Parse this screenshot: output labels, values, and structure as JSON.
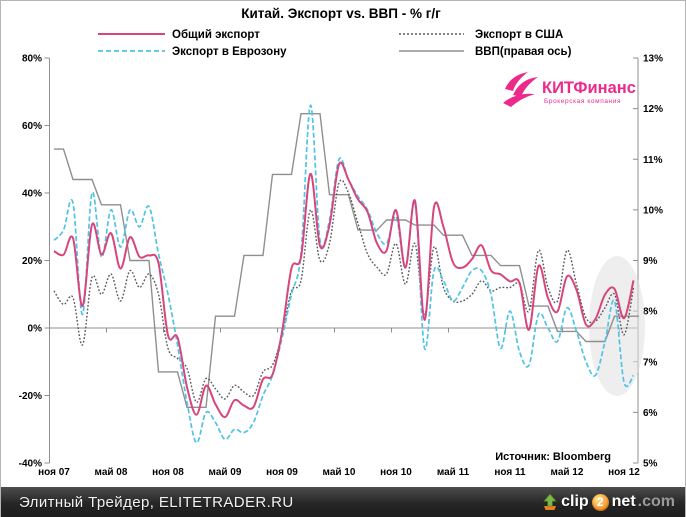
{
  "chart_data": {
    "type": "line",
    "title": "Китай. Экспорт vs. ВВП - % г/г",
    "x_unit": "month",
    "x_first_label_month": "ноя 07",
    "points": 62,
    "x_tick_labels": [
      "ноя 07",
      "май 08",
      "ноя 08",
      "май 09",
      "ноя 09",
      "май 10",
      "ноя 10",
      "май 11",
      "ноя 11",
      "май 12",
      "ноя 12"
    ],
    "left_axis": {
      "min": -40,
      "max": 80,
      "step": 20,
      "unit": "%"
    },
    "right_axis": {
      "min": 5,
      "max": 13,
      "step": 1,
      "unit": "%"
    },
    "grid": "only zero line",
    "legend_position": "top",
    "source_note": "Источник: Bloomberg",
    "annotations": [
      {
        "type": "ellipse-highlight",
        "note": "gray ellipse over the last months of 2012"
      }
    ],
    "series": [
      {
        "name": "Общий экспорт",
        "axis": "left",
        "style": "solid",
        "color": "#d6467d",
        "values": [
          22.8,
          21.7,
          26.6,
          6.5,
          30.6,
          21.8,
          28.1,
          17.6,
          26.9,
          21.1,
          21.5,
          19.2,
          -2.2,
          -2.8,
          -17.5,
          -25.7,
          -17.1,
          -22.6,
          -26.4,
          -21.4,
          -23.0,
          -23.4,
          -15.2,
          -13.8,
          -1.2,
          17.7,
          21.0,
          45.7,
          24.3,
          30.5,
          48.5,
          43.9,
          38.1,
          34.4,
          25.1,
          22.9,
          34.9,
          17.9,
          37.7,
          2.4,
          35.8,
          29.9,
          19.4,
          17.9,
          20.4,
          24.5,
          17.1,
          15.9,
          13.8,
          13.4,
          -0.5,
          18.4,
          8.9,
          4.9,
          15.3,
          11.3,
          1.0,
          2.7,
          9.9,
          11.6,
          2.9,
          14.1
        ]
      },
      {
        "name": "Экспорт в Еврозону",
        "axis": "left",
        "style": "dashed",
        "color": "#50c3e6",
        "values": [
          26,
          29,
          37,
          4,
          40,
          21,
          35,
          24,
          35,
          30,
          36,
          22,
          10,
          -5,
          -22,
          -34,
          -25,
          -28,
          -33,
          -30,
          -31,
          -28,
          -20,
          -14,
          -3,
          10,
          22,
          66,
          26,
          32,
          50,
          44,
          39,
          35,
          28,
          25,
          33,
          18,
          37,
          -6,
          17,
          14,
          8,
          12,
          17,
          17,
          10,
          -6,
          5,
          -7,
          -11,
          4,
          0,
          -4,
          6,
          -1,
          -10,
          -14,
          -4,
          8,
          -16,
          -14
        ]
      },
      {
        "name": "Экспорт в США",
        "axis": "left",
        "style": "dotted",
        "color": "#5a5a5a",
        "values": [
          11,
          7,
          9,
          -5,
          15,
          10,
          16,
          8,
          17,
          12,
          16,
          10,
          -6,
          -9,
          -12,
          -22,
          -15,
          -18,
          -21,
          -17,
          -19,
          -20,
          -13,
          -11,
          -2,
          11,
          14,
          35,
          20,
          25,
          43,
          40,
          31,
          22,
          18,
          16,
          25,
          13,
          25,
          4,
          24,
          12,
          8,
          8,
          10,
          14,
          11,
          12,
          12,
          13,
          5,
          23,
          12,
          8,
          23,
          13,
          3,
          2,
          6,
          10,
          -2,
          12
        ]
      },
      {
        "name": "ВВП(правая ось)",
        "axis": "right",
        "style": "solid-step",
        "color": "#8f8f8f",
        "frequency": "quarterly",
        "quarters": [
          "Q4 2007",
          "Q1 2008",
          "Q2 2008",
          "Q3 2008",
          "Q4 2008",
          "Q1 2009",
          "Q2 2009",
          "Q3 2009",
          "Q4 2009",
          "Q1 2010",
          "Q2 2010",
          "Q3 2010",
          "Q4 2010",
          "Q1 2011",
          "Q2 2011",
          "Q3 2011",
          "Q4 2011",
          "Q1 2012",
          "Q2 2012",
          "Q3 2012",
          "Q4 2012"
        ],
        "values": [
          11.2,
          10.6,
          10.1,
          9.0,
          6.8,
          6.1,
          7.9,
          9.1,
          10.7,
          11.9,
          10.3,
          9.6,
          9.8,
          9.7,
          9.5,
          9.1,
          8.9,
          8.1,
          7.6,
          7.4,
          7.9
        ]
      }
    ]
  },
  "legend": {
    "items": [
      {
        "label": "Общий экспорт"
      },
      {
        "label": "Экспорт в Еврозону"
      },
      {
        "label": "Экспорт в США"
      },
      {
        "label": "ВВП(правая ось)"
      }
    ]
  },
  "logo": {
    "name": "КИТФинанс",
    "subtitle": "Брокерская компания",
    "color": "#ec2a8c"
  },
  "footer": {
    "site": "Элитный Трейдер, ELITETRADER.RU",
    "clip2net": {
      "pre": "clip",
      "mid": "2",
      "post": "net",
      "tld": ".com"
    }
  }
}
